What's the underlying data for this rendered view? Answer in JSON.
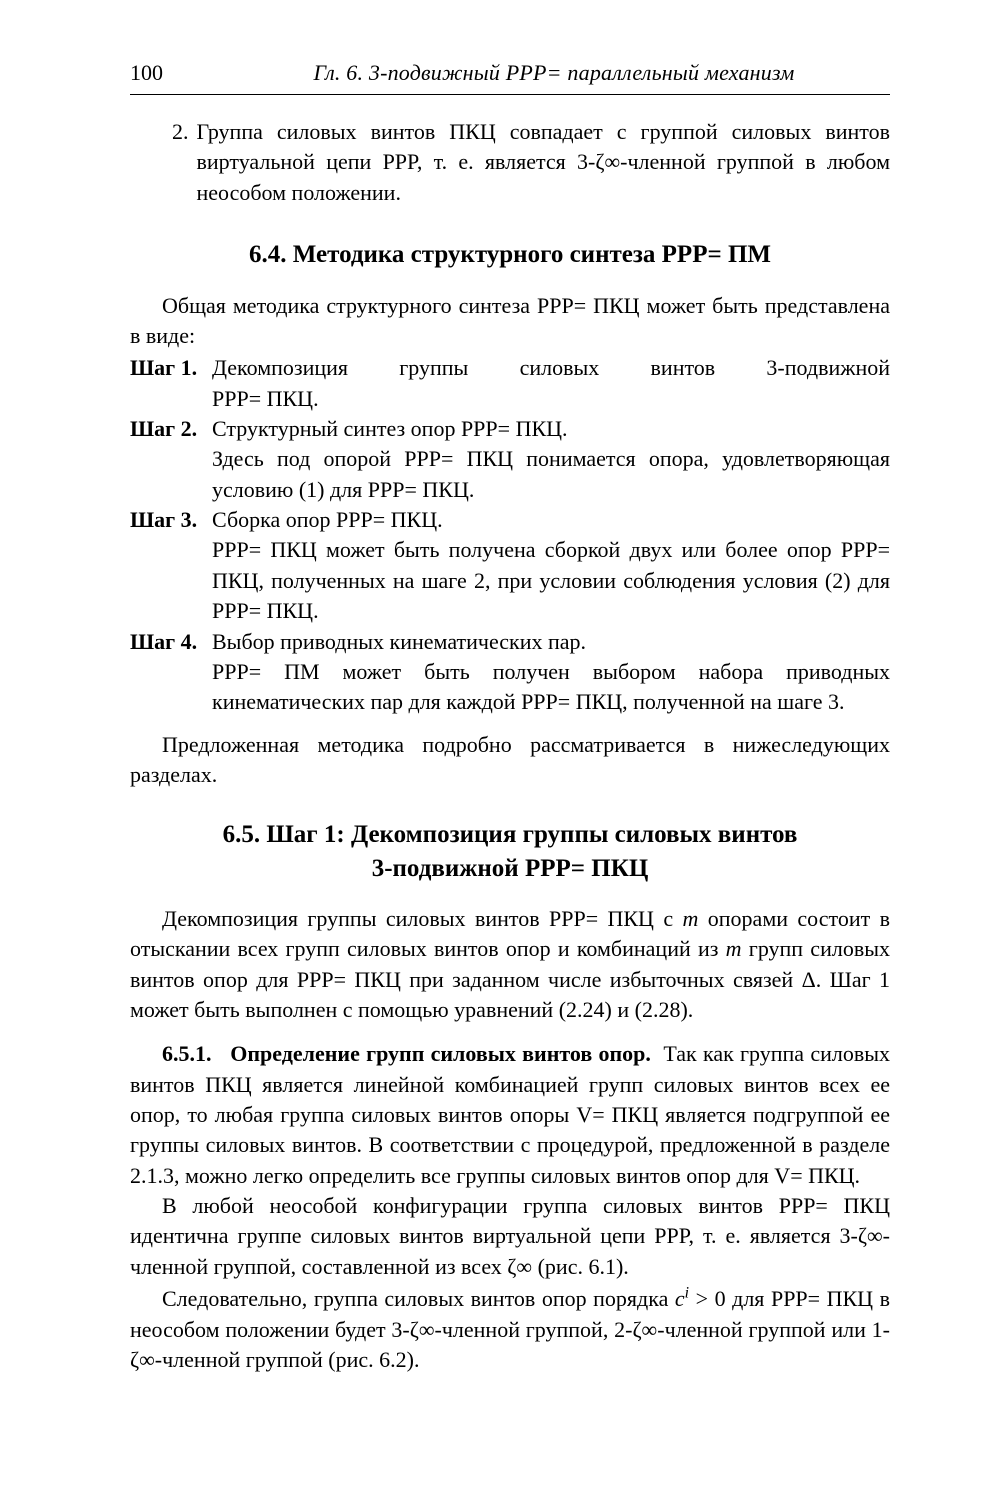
{
  "header": {
    "page": "100",
    "title": "Гл. 6. 3-подвижный PPP= параллельный механизм"
  },
  "topList": {
    "num": "2.",
    "text": "Группа силовых винтов ПКЦ совпадает с группой силовых винтов виртуальной цепи PPP, т. е. является 3-ζ∞-членной группой в любом неособом положении."
  },
  "sec64": {
    "title": "6.4. Методика структурного синтеза PPP= ПМ",
    "intro": "Общая методика структурного синтеза PPP= ПКЦ может быть представлена в виде:",
    "steps": {
      "s1": {
        "label": "Шаг 1.",
        "l1": "Декомпозиция группы силовых винтов 3-подвижной",
        "l2": "PPP= ПКЦ."
      },
      "s2": {
        "label": "Шаг 2.",
        "l1": "Структурный синтез опор PPP= ПКЦ.",
        "l2": "Здесь под опорой PPP= ПКЦ понимается опора, удовлетворяющая условию (1) для PPP= ПКЦ."
      },
      "s3": {
        "label": "Шаг 3.",
        "l1": "Сборка опор PPP= ПКЦ.",
        "l2": "PPP= ПКЦ может быть получена сборкой двух или более опор PPP= ПКЦ, полученных на шаге 2, при условии соблюдения условия (2) для PPP= ПКЦ."
      },
      "s4": {
        "label": "Шаг 4.",
        "l1": "Выбор приводных кинематических пар.",
        "l2": "PPP= ПМ может быть получен выбором набора приводных кинематических пар для каждой PPP= ПКЦ, полученной на шаге 3."
      }
    },
    "outro": "Предложенная методика подробно рассматривается в нижеследующих разделах."
  },
  "sec65": {
    "title_l1": "6.5. Шаг 1: Декомпозиция группы силовых винтов",
    "title_l2": "3-подвижной PPP= ПКЦ",
    "p1a": "Декомпозиция группы силовых винтов PPP= ПКЦ с ",
    "p1b": " опорами состоит в отыскании всех групп силовых винтов опор и комбинаций из ",
    "p1c": " групп силовых винтов опор для PPP= ПКЦ при заданном числе избыточных связей Δ. Шаг 1 может быть выполнен с помощью уравнений (2.24) и (2.28).",
    "m": "m",
    "sub651": {
      "num": "6.5.1.",
      "title": "Определение групп силовых винтов опор.",
      "tail": "Так как группа силовых винтов ПКЦ является линейной комбинацией групп силовых винтов всех ее опор, то любая группа силовых винтов опоры V= ПКЦ является подгруппой ее группы силовых винтов. В соответствии с процедурой, предложенной в разделе 2.1.3, можно легко определить все группы силовых винтов опор для V= ПКЦ."
    },
    "p2": "В любой неособой конфигурации группа силовых винтов PPP= ПКЦ идентична группе силовых винтов виртуальной цепи PPP, т. е. является 3-ζ∞-членной группой, составленной из всех ζ∞ (рис. 6.1).",
    "p3a": "Следовательно, группа силовых винтов опор порядка ",
    "p3b": " для PPP= ПКЦ в неособом положении будет 3-ζ∞-членной группой, 2-ζ∞-членной группой или 1-ζ∞-членной группой (рис. 6.2).",
    "ci": "c",
    "cisup": "i",
    "gt0": " > 0"
  }
}
